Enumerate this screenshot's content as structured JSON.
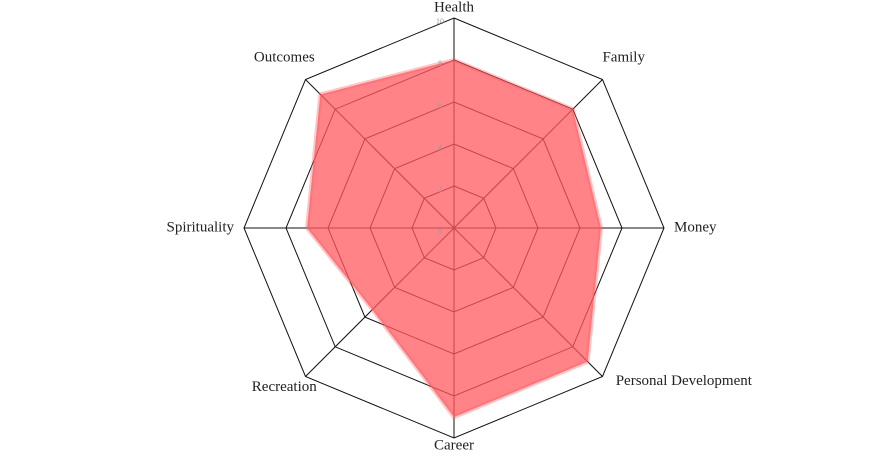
{
  "chart_data": {
    "type": "radar",
    "categories": [
      "Health",
      "Family",
      "Money",
      "Personal Development",
      "Career",
      "Recreation",
      "Spirituality",
      "Outcomes"
    ],
    "series": [
      {
        "color": "#ff5a5f",
        "values": [
          8,
          8,
          7,
          9,
          9,
          5.5,
          7,
          9
        ]
      }
    ],
    "ylim": [
      0,
      10
    ],
    "yticks": [
      0,
      2,
      4,
      6,
      8,
      10
    ]
  }
}
